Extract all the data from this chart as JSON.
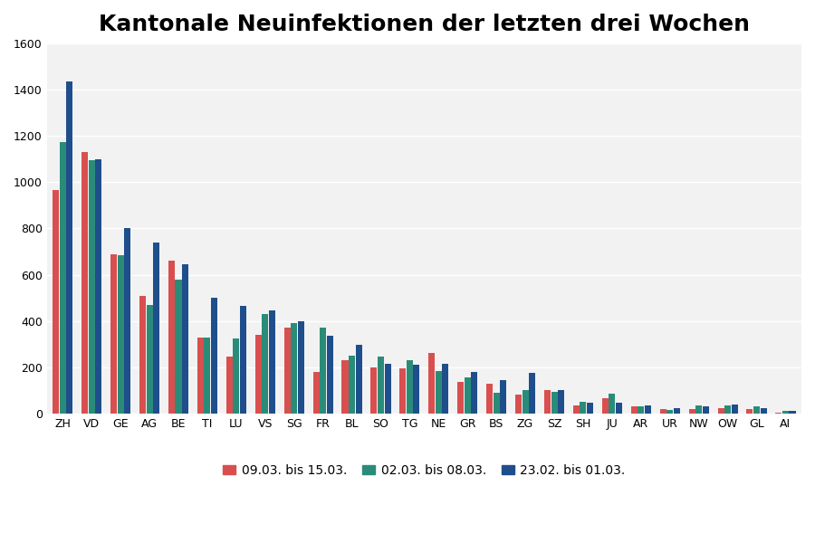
{
  "title": "Kantonale Neuinfektionen der letzten drei Wochen",
  "cantons": [
    "ZH",
    "VD",
    "GE",
    "AG",
    "BE",
    "TI",
    "LU",
    "VS",
    "SG",
    "FR",
    "BL",
    "SO",
    "TG",
    "NE",
    "GR",
    "BS",
    "ZG",
    "SZ",
    "SH",
    "JU",
    "AR",
    "UR",
    "NW",
    "OW",
    "GL",
    "AI"
  ],
  "series": {
    "09.03. bis 15.03.": [
      965,
      1130,
      690,
      510,
      660,
      330,
      245,
      340,
      370,
      180,
      230,
      200,
      195,
      260,
      135,
      130,
      80,
      100,
      35,
      65,
      30,
      20,
      20,
      25,
      20,
      5
    ],
    "02.03. bis 08.03.": [
      1175,
      1095,
      685,
      470,
      580,
      330,
      325,
      430,
      390,
      370,
      250,
      245,
      230,
      185,
      155,
      90,
      100,
      95,
      50,
      85,
      30,
      15,
      35,
      35,
      30,
      10
    ],
    "23.02. bis 01.03.": [
      1435,
      1100,
      800,
      738,
      645,
      500,
      465,
      445,
      400,
      335,
      295,
      215,
      210,
      215,
      180,
      145,
      175,
      100,
      45,
      45,
      35,
      25,
      30,
      40,
      25,
      10
    ]
  },
  "colors": {
    "09.03. bis 15.03.": "#d94f4f",
    "02.03. bis 08.03.": "#2a8c78",
    "23.02. bis 01.03.": "#1f4e8c"
  },
  "ylim": [
    0,
    1600
  ],
  "yticks": [
    0,
    200,
    400,
    600,
    800,
    1000,
    1200,
    1400,
    1600
  ],
  "background_color": "#ffffff",
  "plot_bg_color": "#f2f2f2",
  "grid_color": "#ffffff",
  "title_fontsize": 18,
  "tick_fontsize": 9,
  "legend_fontsize": 10
}
